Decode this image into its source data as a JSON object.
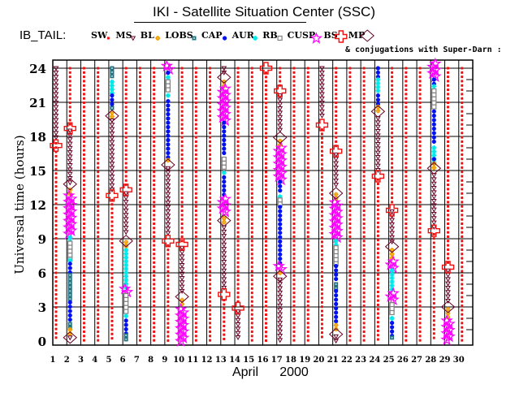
{
  "header": {
    "title": "IKI - Satellite Situation Center (SSC)",
    "subtitle": "& conjugations with Super-Darn :"
  },
  "chart_data": {
    "type": "scatter",
    "title": "IKI - Satellite Situation Center (SSC)",
    "dataset_label": "IB_TAIL:",
    "xlabel_month": "April",
    "xlabel_year": "2000",
    "ylabel": "Universal time (hours)",
    "xlim": [
      1,
      30
    ],
    "ylim": [
      0,
      24
    ],
    "y_ticks": [
      0,
      3,
      6,
      9,
      12,
      15,
      18,
      21,
      24
    ],
    "x_ticks": [
      1,
      2,
      3,
      4,
      5,
      6,
      7,
      8,
      9,
      10,
      11,
      12,
      13,
      14,
      15,
      16,
      17,
      18,
      19,
      20,
      21,
      22,
      23,
      24,
      25,
      26,
      27,
      28,
      29,
      30
    ],
    "grid": true,
    "legend": [
      {
        "key": "SW",
        "label": "SW",
        "color": "#ee1111"
      },
      {
        "key": "MS",
        "label": "MS",
        "color": "#660022"
      },
      {
        "key": "BL",
        "label": "BL",
        "color": "#f0a000"
      },
      {
        "key": "LOBS",
        "label": "LOBS",
        "color": "#207080"
      },
      {
        "key": "CAP",
        "label": "CAP",
        "color": "#0010ee"
      },
      {
        "key": "AUR",
        "label": "AUR",
        "color": "#00e8e8"
      },
      {
        "key": "RB",
        "label": "RB",
        "color": "#808080"
      },
      {
        "key": "CUSP",
        "label": "CUSP",
        "color": "#ff00ff"
      },
      {
        "key": "BS",
        "label": "BS",
        "color": "#ee1111"
      },
      {
        "key": "MP",
        "label": "MP",
        "color": "#660022"
      }
    ],
    "days": [
      {
        "day": 1,
        "segments": [
          [
            "MS",
            24,
            17.6
          ],
          [
            "SW",
            17.4,
            0
          ]
        ],
        "bs": [
          17.2
        ],
        "mp": []
      },
      {
        "day": 2,
        "segments": [
          [
            "SW",
            24,
            19
          ],
          [
            "MS",
            18.5,
            13.6
          ],
          [
            "BL",
            13.3,
            12.8
          ],
          [
            "CUSP",
            12.8,
            9.2
          ],
          [
            "AUR",
            9.1,
            8.6
          ],
          [
            "RB",
            8.6,
            7.2
          ],
          [
            "AUR",
            7.1,
            6.8
          ],
          [
            "CAP",
            6.8,
            5.8
          ],
          [
            "LOBS",
            5.8,
            3.4
          ],
          [
            "CAP",
            3.4,
            1.6
          ],
          [
            "LOBS",
            1.5,
            1.0
          ],
          [
            "BL",
            1.0,
            0.4
          ],
          [
            "MS",
            0.3,
            0
          ]
        ],
        "bs": [
          18.7
        ],
        "mp": [
          13.8,
          0.3
        ]
      },
      {
        "day": 3,
        "segments": [
          [
            "SW",
            24,
            0
          ]
        ],
        "bs": [],
        "mp": []
      },
      {
        "day": 4,
        "segments": [
          [
            "SW",
            24,
            0
          ]
        ],
        "bs": [],
        "mp": []
      },
      {
        "day": 5,
        "segments": [
          [
            "LOBS",
            24,
            23
          ],
          [
            "AUR",
            22.8,
            21.8
          ],
          [
            "CAP",
            21.6,
            20.6
          ],
          [
            "LOBS",
            20.5,
            20.3
          ],
          [
            "BL",
            20.1,
            19.6
          ],
          [
            "MS",
            19.4,
            13.2
          ],
          [
            "SW",
            12.4,
            0
          ]
        ],
        "bs": [
          12.8
        ],
        "mp": [
          19.8
        ]
      },
      {
        "day": 6,
        "segments": [
          [
            "SW",
            24,
            13.6
          ],
          [
            "MS",
            13,
            9.3
          ],
          [
            "BL",
            8.7,
            8.1
          ],
          [
            "AUR",
            8,
            4.7
          ],
          [
            "CUSP",
            4.6,
            4.2
          ],
          [
            "RB",
            4,
            2.4
          ],
          [
            "AUR",
            2.2,
            2.0
          ],
          [
            "CAP",
            1.8,
            0.6
          ],
          [
            "LOBS",
            0.5,
            0
          ]
        ],
        "bs": [
          13.3
        ],
        "mp": [
          8.8
        ]
      },
      {
        "day": 7,
        "segments": [
          [
            "SW",
            24,
            0
          ]
        ],
        "bs": [],
        "mp": []
      },
      {
        "day": 8,
        "segments": [
          [
            "SW",
            24,
            0
          ]
        ],
        "bs": [],
        "mp": []
      },
      {
        "day": 9,
        "segments": [
          [
            "CUSP",
            24.2,
            23.8
          ],
          [
            "CAP",
            23.6,
            23.3
          ],
          [
            "AUR",
            23.2,
            22.9
          ],
          [
            "RB",
            22.8,
            21.8
          ],
          [
            "AUR",
            21.6,
            21.3
          ],
          [
            "CAP",
            21.1,
            16
          ],
          [
            "BL",
            15.9,
            15.6
          ],
          [
            "MS",
            15.2,
            9.2
          ],
          [
            "SW",
            8.4,
            0
          ]
        ],
        "bs": [
          8.8
        ],
        "mp": [
          15.5
        ]
      },
      {
        "day": 10,
        "segments": [
          [
            "SW",
            24,
            8.8
          ],
          [
            "MS",
            8.2,
            4.2
          ],
          [
            "BL",
            3.6,
            3.0
          ],
          [
            "CUSP",
            2.8,
            0
          ]
        ],
        "bs": [
          8.5
        ],
        "mp": [
          3.9
        ]
      },
      {
        "day": 11,
        "segments": [
          [
            "SW",
            24,
            0
          ]
        ],
        "bs": [],
        "mp": []
      },
      {
        "day": 12,
        "segments": [
          [
            "SW",
            24,
            0
          ]
        ],
        "bs": [],
        "mp": []
      },
      {
        "day": 13,
        "segments": [
          [
            "MS",
            24,
            23.6
          ],
          [
            "BL",
            22.8,
            22.4
          ],
          [
            "CUSP",
            22.2,
            19.4
          ],
          [
            "CAP",
            19.2,
            16.2
          ],
          [
            "RB",
            16,
            15.2
          ],
          [
            "AUR",
            14.8,
            14.6
          ],
          [
            "CAP",
            14.4,
            12.6
          ],
          [
            "CUSP",
            12.5,
            11.2
          ],
          [
            "BL",
            10.8,
            10.3
          ],
          [
            "MS",
            10,
            4.6
          ],
          [
            "SW",
            3.6,
            0
          ]
        ],
        "bs": [
          4.1
        ],
        "mp": [
          23.2,
          10.6
        ]
      },
      {
        "day": 14,
        "segments": [
          [
            "SW",
            24,
            3.2
          ],
          [
            "MS",
            2.6,
            0
          ]
        ],
        "bs": [
          2.9
        ],
        "mp": []
      },
      {
        "day": 15,
        "segments": [
          [
            "SW",
            24,
            0
          ]
        ],
        "bs": [],
        "mp": []
      },
      {
        "day": 16,
        "segments": [
          [
            "SW",
            23.6,
            0
          ]
        ],
        "bs": [
          24
        ],
        "mp": []
      },
      {
        "day": 17,
        "segments": [
          [
            "SW",
            24,
            22.4
          ],
          [
            "MS",
            21.6,
            18.2
          ],
          [
            "BL",
            17.6,
            17.1
          ],
          [
            "CUSP",
            17,
            14.2
          ],
          [
            "CAP",
            14,
            12.9
          ],
          [
            "AUR",
            12.7,
            12.5
          ],
          [
            "RB",
            12.4,
            12.0
          ],
          [
            "CAP",
            11.8,
            6.8
          ],
          [
            "CUSP",
            6.6,
            6.1
          ],
          [
            "BL",
            6.0,
            5.8
          ],
          [
            "MS",
            5.4,
            0
          ]
        ],
        "bs": [
          22
        ],
        "mp": [
          17.9,
          5.7
        ]
      },
      {
        "day": 18,
        "segments": [
          [
            "SW",
            24,
            0
          ]
        ],
        "bs": [],
        "mp": []
      },
      {
        "day": 19,
        "segments": [
          [
            "SW",
            24,
            0
          ]
        ],
        "bs": [],
        "mp": []
      },
      {
        "day": 20,
        "segments": [
          [
            "MS",
            24,
            19.5
          ],
          [
            "SW",
            18.6,
            0
          ]
        ],
        "bs": [
          19
        ],
        "mp": []
      },
      {
        "day": 21,
        "segments": [
          [
            "SW",
            24,
            17
          ],
          [
            "MS",
            16.4,
            13.4
          ],
          [
            "BL",
            12.9,
            12.4
          ],
          [
            "CUSP",
            12.2,
            9.0
          ],
          [
            "AUR",
            8.8,
            8.4
          ],
          [
            "RB",
            8.2,
            6.8
          ],
          [
            "CAP",
            6.6,
            5.2
          ],
          [
            "LOBS",
            5.0,
            4.6
          ],
          [
            "CAP",
            4.4,
            1.6
          ],
          [
            "BL",
            1.4,
            0.8
          ],
          [
            "MS",
            0.4,
            0
          ]
        ],
        "bs": [
          16.7
        ],
        "mp": [
          13.0,
          0.6
        ]
      },
      {
        "day": 22,
        "segments": [
          [
            "SW",
            24,
            0
          ]
        ],
        "bs": [],
        "mp": []
      },
      {
        "day": 23,
        "segments": [
          [
            "SW",
            24,
            0
          ]
        ],
        "bs": [],
        "mp": []
      },
      {
        "day": 24,
        "segments": [
          [
            "CAP",
            24,
            23.2
          ],
          [
            "AUR",
            23,
            21.8
          ],
          [
            "CAP",
            21.6,
            20.8
          ],
          [
            "BL",
            20.6,
            20.0
          ],
          [
            "MS",
            19.6,
            14.8
          ],
          [
            "SW",
            14.2,
            0
          ]
        ],
        "bs": [
          14.5
        ],
        "mp": [
          20.2
        ]
      },
      {
        "day": 25,
        "segments": [
          [
            "SW",
            24,
            12
          ],
          [
            "MS",
            11.4,
            8.6
          ],
          [
            "BL",
            8.0,
            7.2
          ],
          [
            "CUSP",
            7.0,
            6.4
          ],
          [
            "AUR",
            6.2,
            4.4
          ],
          [
            "CUSP",
            4.2,
            3.4
          ],
          [
            "RB",
            3.2,
            2.2
          ],
          [
            "AUR",
            2.0,
            1.8
          ],
          [
            "CAP",
            1.6,
            0.4
          ],
          [
            "LOBS",
            0.3,
            0
          ]
        ],
        "bs": [
          11.5
        ],
        "mp": [
          8.3
        ]
      },
      {
        "day": 26,
        "segments": [
          [
            "SW",
            24,
            0
          ]
        ],
        "bs": [],
        "mp": []
      },
      {
        "day": 27,
        "segments": [
          [
            "SW",
            24,
            0
          ]
        ],
        "bs": [],
        "mp": []
      },
      {
        "day": 28,
        "segments": [
          [
            "CUSP",
            24.4,
            23.2
          ],
          [
            "CAP",
            23,
            22.6
          ],
          [
            "AUR",
            22.4,
            22.2
          ],
          [
            "RB",
            22,
            20.4
          ],
          [
            "CAP",
            20.2,
            17.2
          ],
          [
            "AUR",
            17,
            15.6
          ],
          [
            "CAP",
            15.4,
            16
          ],
          [
            "BL",
            15.6,
            15.0
          ],
          [
            "MS",
            14.6,
            10.0
          ],
          [
            "SW",
            9.4,
            0
          ]
        ],
        "bs": [
          9.7
        ],
        "mp": [
          15.2
        ]
      },
      {
        "day": 29,
        "segments": [
          [
            "SW",
            24,
            6.8
          ],
          [
            "MS",
            6.2,
            3.2
          ],
          [
            "BL",
            2.8,
            2.0
          ],
          [
            "CUSP",
            1.8,
            0
          ]
        ],
        "bs": [
          6.5
        ],
        "mp": [
          3.0
        ]
      },
      {
        "day": 30,
        "segments": [
          [
            "SW",
            24,
            0
          ]
        ],
        "bs": [],
        "mp": []
      }
    ]
  }
}
